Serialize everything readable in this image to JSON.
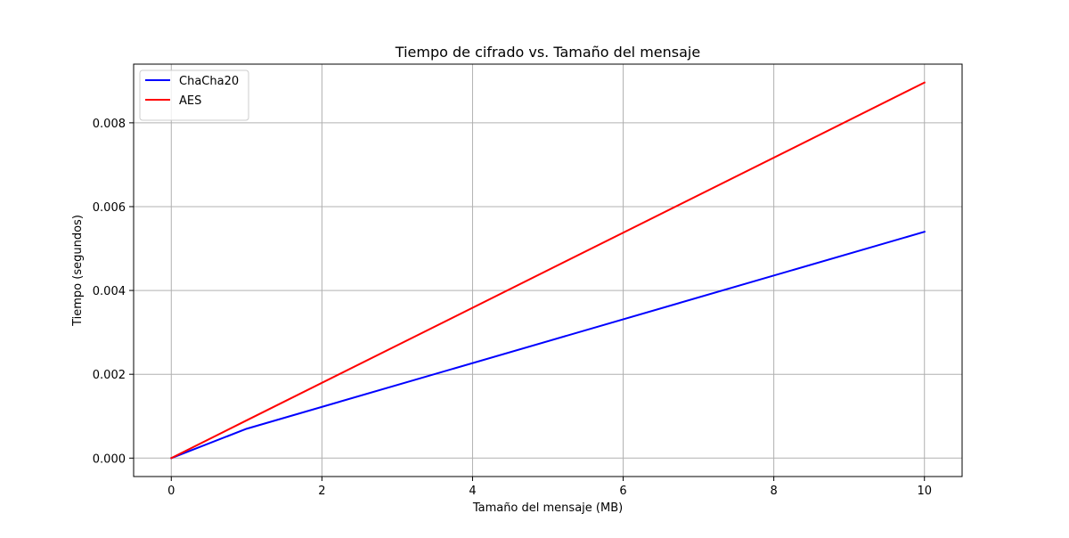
{
  "chart_data": {
    "type": "line",
    "title": "Tiempo de cifrado vs. Tamaño del mensaje",
    "xlabel": "Tamaño del mensaje (MB)",
    "ylabel": "Tiempo (segundos)",
    "xlim": [
      -0.5,
      10.5
    ],
    "ylim": [
      -0.00044,
      0.0094
    ],
    "xticks": [
      0,
      2,
      4,
      6,
      8,
      10
    ],
    "xtick_labels": [
      "0",
      "2",
      "4",
      "6",
      "8",
      "10"
    ],
    "yticks": [
      0.0,
      0.002,
      0.004,
      0.006,
      0.008
    ],
    "ytick_labels": [
      "0.000",
      "0.002",
      "0.004",
      "0.006",
      "0.008"
    ],
    "grid": true,
    "legend_position": "upper-left",
    "series": [
      {
        "name": "ChaCha20",
        "color": "#0000ff",
        "x": [
          0.001,
          1,
          10
        ],
        "y": [
          5e-07,
          0.0007,
          0.0054
        ]
      },
      {
        "name": "AES",
        "color": "#ff0000",
        "x": [
          0.001,
          1,
          10
        ],
        "y": [
          9e-07,
          0.0009,
          0.00896
        ]
      }
    ]
  }
}
